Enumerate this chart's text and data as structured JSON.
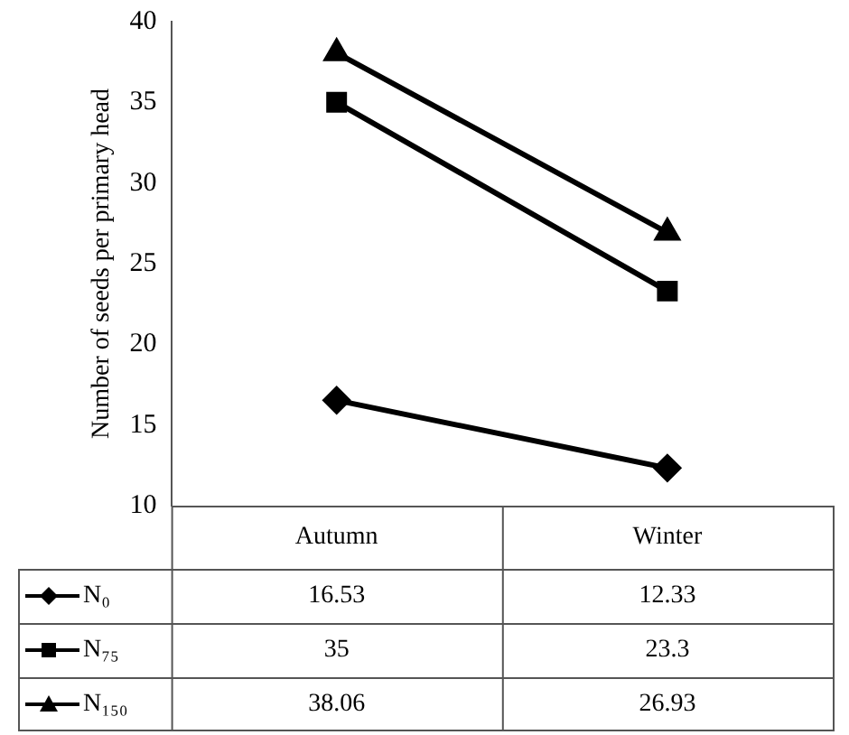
{
  "chart_data": {
    "type": "line",
    "ylabel": "Number of seeds per primary head",
    "categories": [
      "Autumn",
      "Winter"
    ],
    "series": [
      {
        "name": "N₀",
        "color": "#000000",
        "values": [
          16.53,
          12.33
        ],
        "marker": "diamond"
      },
      {
        "name": "N₇₅",
        "color": "#000000",
        "values": [
          35,
          23.3
        ],
        "marker": "square"
      },
      {
        "name": "N₁₅₀",
        "color": "#000000",
        "values": [
          38.06,
          26.93
        ],
        "marker": "triangle"
      }
    ],
    "ylim": [
      10,
      40
    ],
    "yticks": [
      10,
      15,
      20,
      25,
      30,
      35,
      40
    ],
    "grid": false,
    "legend": "bottom left",
    "data_labels": true,
    "line_style": "solid"
  }
}
